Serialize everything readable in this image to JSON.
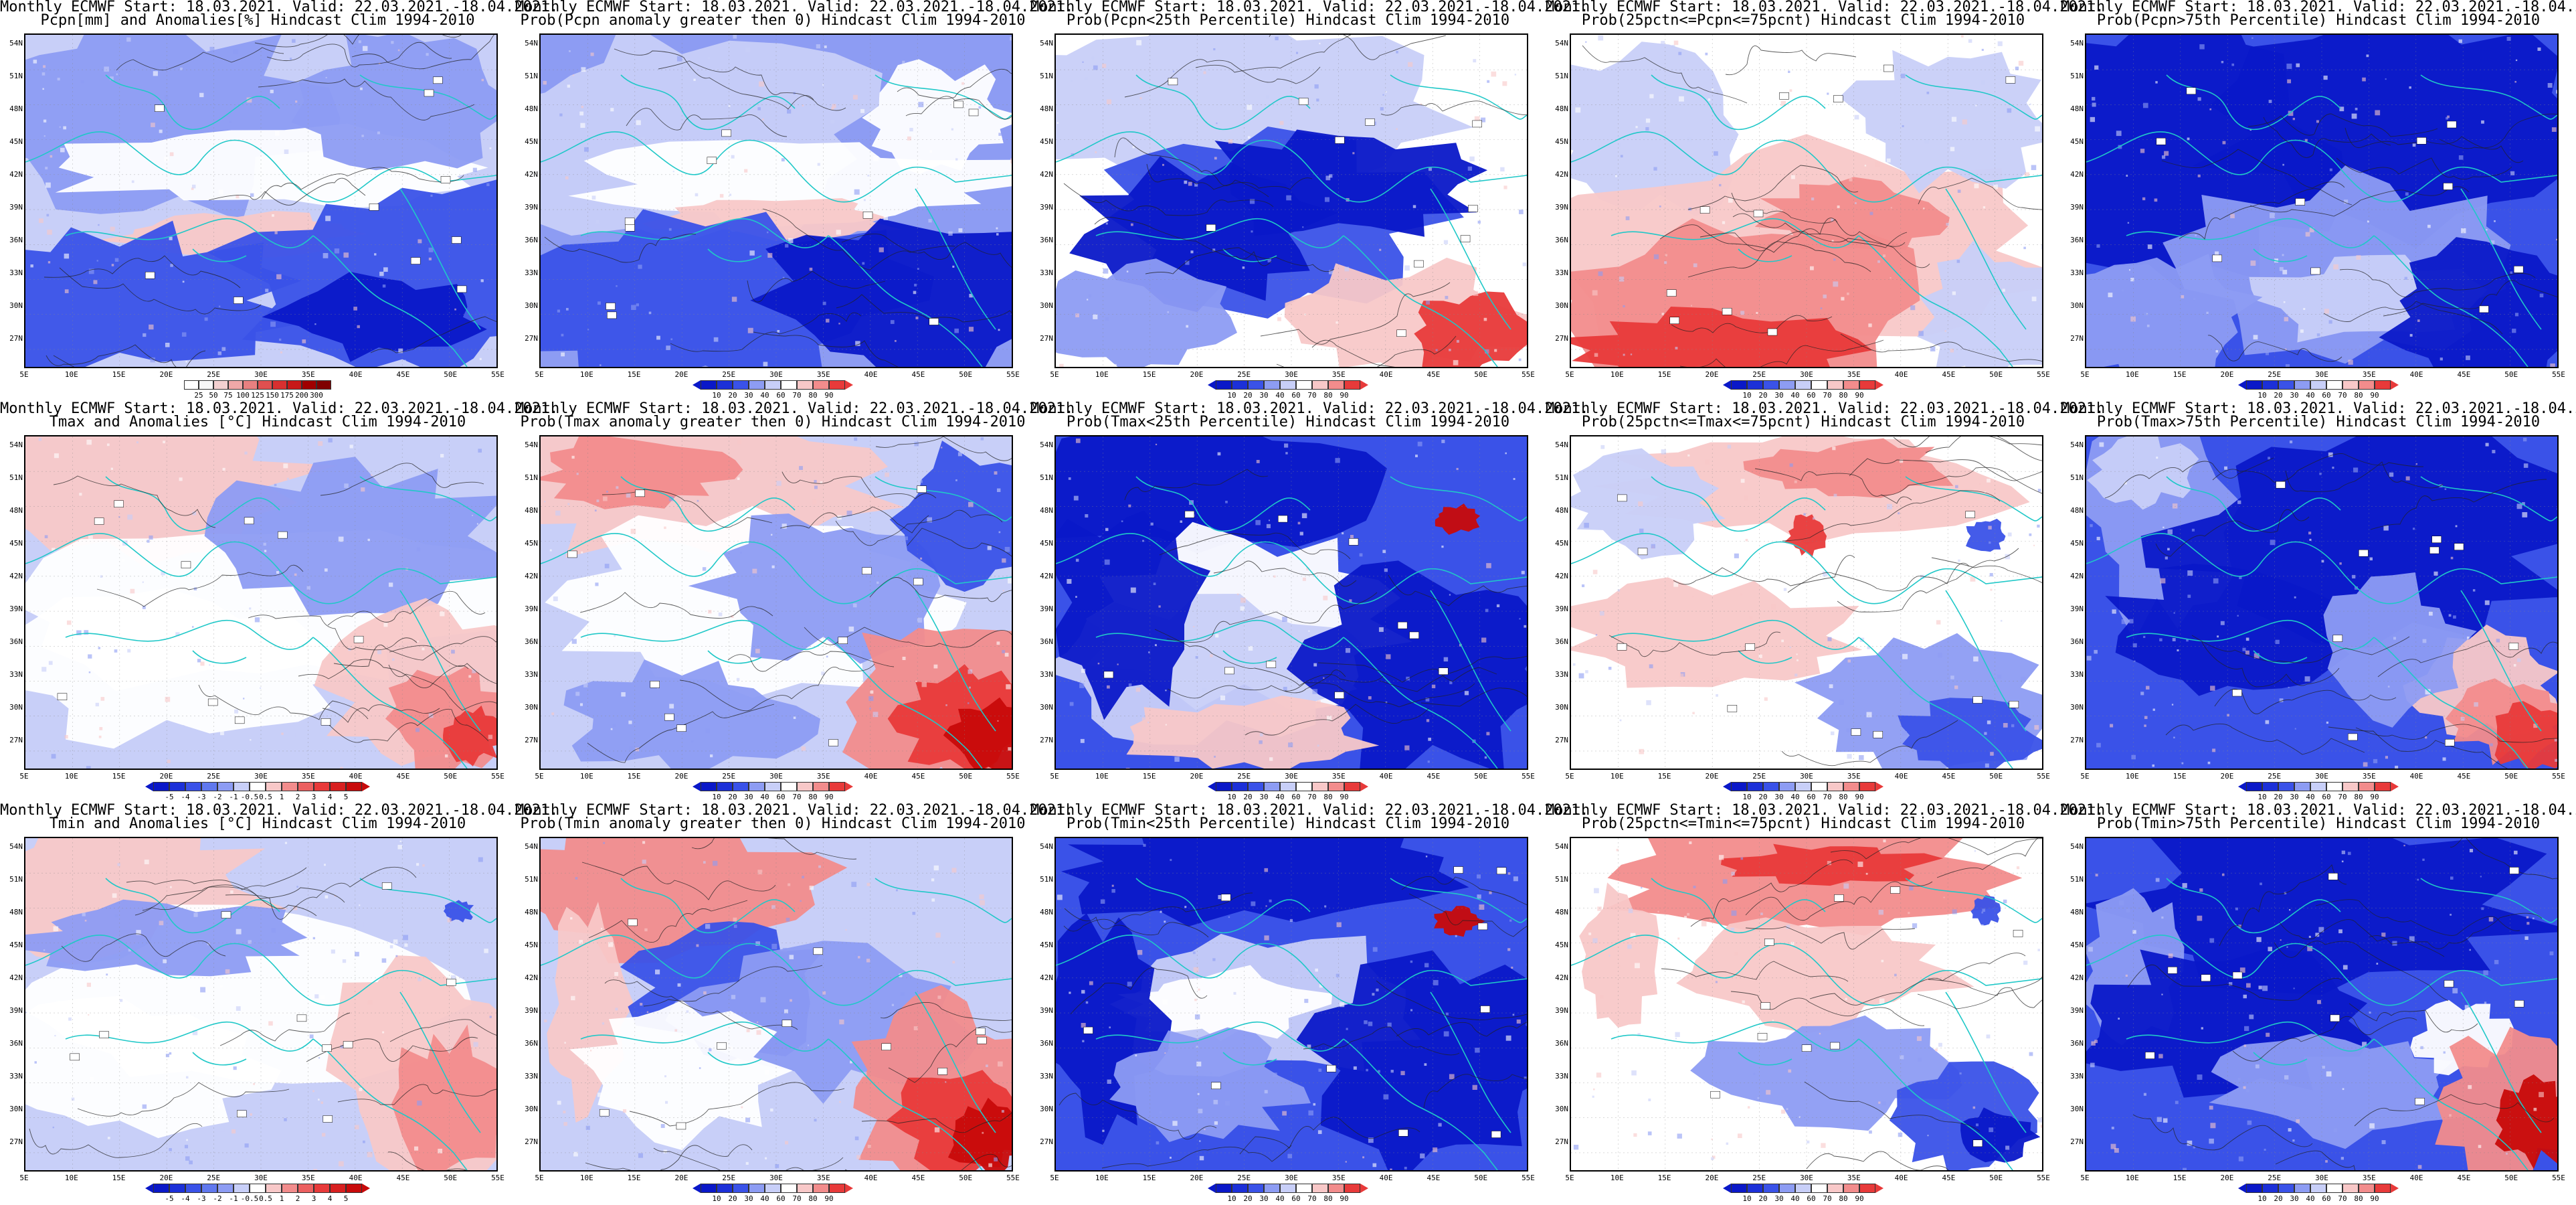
{
  "header_line": "Monthly ECMWF Start: 18.03.2021. Valid: 22.03.2021.-18.04.2021.",
  "lat_labels": [
    "54N",
    "51N",
    "48N",
    "45N",
    "42N",
    "39N",
    "36N",
    "33N",
    "30N",
    "27N"
  ],
  "lon_labels": [
    "5E",
    "10E",
    "15E",
    "20E",
    "25E",
    "30E",
    "35E",
    "40E",
    "45E",
    "50E",
    "55E"
  ],
  "colors": {
    "dark_blue": "#0a18c8",
    "mid_blue": "#3a52e8",
    "light_blue": "#8d9cf3",
    "pale_blue": "#c8cff8",
    "white": "#ffffff",
    "pale_red": "#f8c8c8",
    "light_red": "#f28c8c",
    "mid_red": "#e83a3a",
    "dark_red": "#c80a0a",
    "coast": "#20c8c8",
    "contour": "#222222"
  },
  "scales": {
    "pcpn": [
      "25",
      "50",
      "75",
      "100",
      "125",
      "150",
      "175",
      "200",
      "300"
    ],
    "prob": [
      "10",
      "20",
      "30",
      "40",
      "60",
      "70",
      "80",
      "90"
    ],
    "temp": [
      "-5",
      "-4",
      "-3",
      "-2",
      "-1",
      "-0.5",
      "0.5",
      "1",
      "2",
      "3",
      "4",
      "5"
    ]
  },
  "panels": [
    {
      "title": "Pcpn[mm] and Anomalies[%] Hindcast Clim 1994-2010",
      "scale": "pcpn",
      "pattern": "pcpn"
    },
    {
      "title": "Prob(Pcpn anomaly greater then 0) Hindcast Clim 1994-2010",
      "scale": "prob",
      "pattern": "bluesouth"
    },
    {
      "title": "Prob(Pcpn<25th Percentile) Hindcast Clim 1994-2010",
      "scale": "prob",
      "pattern": "bluecenter"
    },
    {
      "title": "Prob(25pctn<=Pcpn<=75pcnt) Hindcast Clim 1994-2010",
      "scale": "prob",
      "pattern": "redsouth"
    },
    {
      "title": "Prob(Pcpn>75th Percentile) Hindcast Clim 1994-2010",
      "scale": "prob",
      "pattern": "allblue"
    },
    {
      "title": "Tmax and Anomalies [°C] Hindcast Clim 1994-2010",
      "scale": "temp",
      "pattern": "tempanom"
    },
    {
      "title": "Prob(Tmax anomaly greater then 0) Hindcast Clim 1994-2010",
      "scale": "prob",
      "pattern": "redse"
    },
    {
      "title": "Prob(Tmax<25th Percentile) Hindcast Clim 1994-2010",
      "scale": "prob",
      "pattern": "bluewide"
    },
    {
      "title": "Prob(25pctn<=Tmax<=75pcnt) Hindcast Clim 1994-2010",
      "scale": "prob",
      "pattern": "mixed"
    },
    {
      "title": "Prob(Tmax>75th Percentile) Hindcast Clim 1994-2010",
      "scale": "prob",
      "pattern": "bluese"
    },
    {
      "title": "Tmin and Anomalies [°C] Hindcast Clim 1994-2010",
      "scale": "temp",
      "pattern": "tempanom2"
    },
    {
      "title": "Prob(Tmin anomaly greater then 0) Hindcast Clim 1994-2010",
      "scale": "prob",
      "pattern": "redse2"
    },
    {
      "title": "Prob(Tmin<25th Percentile) Hindcast Clim 1994-2010",
      "scale": "prob",
      "pattern": "bluewide2"
    },
    {
      "title": "Prob(25pctn<=Tmin<=75pcnt) Hindcast Clim 1994-2010",
      "scale": "prob",
      "pattern": "mixed2"
    },
    {
      "title": "Prob(Tmin>75th Percentile) Hindcast Clim 1994-2010",
      "scale": "prob",
      "pattern": "bluese2"
    }
  ]
}
